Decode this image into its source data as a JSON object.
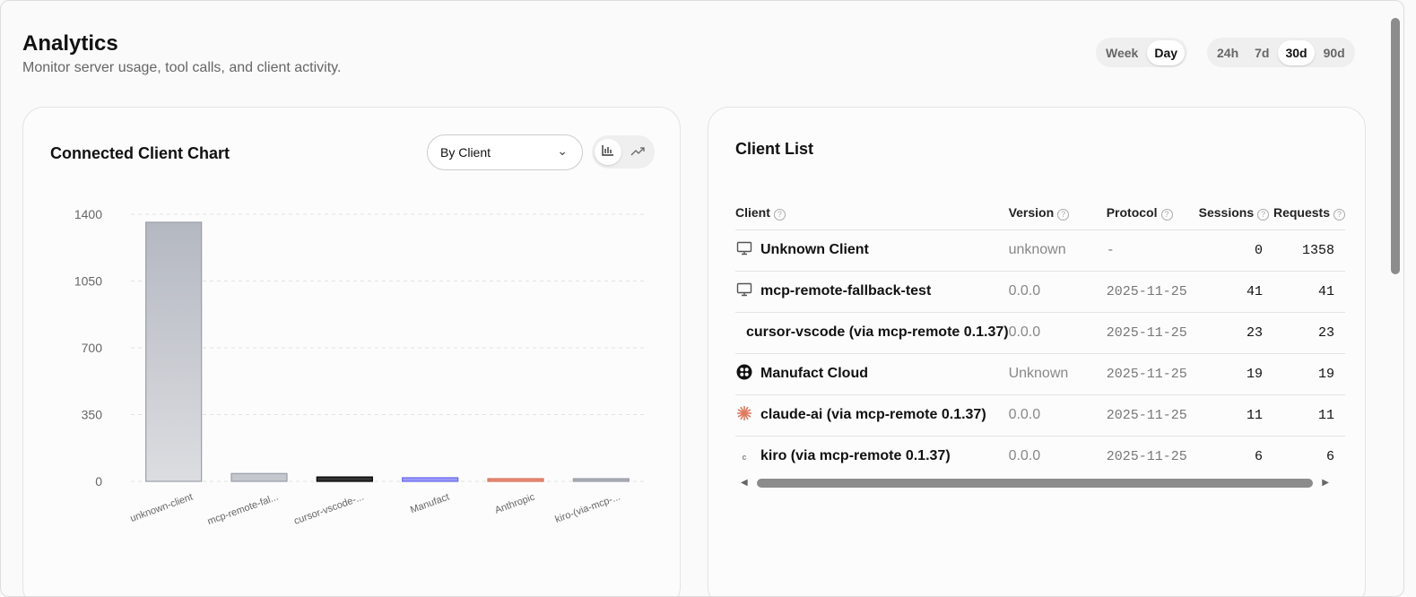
{
  "header": {
    "title": "Analytics",
    "subtitle": "Monitor server usage, tool calls, and client activity."
  },
  "granularity": {
    "options": [
      "Week",
      "Day"
    ],
    "selected": "Day"
  },
  "range": {
    "options": [
      "24h",
      "7d",
      "30d",
      "90d"
    ],
    "selected": "30d"
  },
  "chart_card": {
    "title": "Connected Client Chart",
    "group_by": "By Client",
    "view_modes": [
      "bar-chart-icon",
      "trending-up-icon"
    ],
    "selected_view": "bar-chart-icon"
  },
  "chart_data": {
    "type": "bar",
    "categories": [
      "unknown-client",
      "mcp-remote-fal...",
      "cursor-vscode-...",
      "Manufact",
      "Anthropic",
      "kiro-(via-mcp-..."
    ],
    "values": [
      1358,
      41,
      23,
      19,
      11,
      6
    ],
    "colors": [
      "#b6bac2",
      "#c4c7ce",
      "#333333",
      "#9a9af7",
      "#e88f77",
      "#a9adb5"
    ],
    "yticks": [
      0,
      350,
      700,
      1050,
      1400
    ],
    "ylim": [
      0,
      1400
    ],
    "grid": true
  },
  "client_list": {
    "title": "Client List",
    "columns": [
      "Client",
      "Version",
      "Protocol",
      "Sessions",
      "Requests"
    ],
    "rows": [
      {
        "icon": "monitor-icon",
        "client": "Unknown Client",
        "version": "unknown",
        "protocol": "-",
        "sessions": "0",
        "requests": "1358"
      },
      {
        "icon": "monitor-icon",
        "client": "mcp-remote-fallback-test",
        "version": "0.0.0",
        "protocol": "2025-11-25",
        "sessions": "41",
        "requests": "41"
      },
      {
        "icon": "",
        "client": "cursor-vscode (via mcp-remote 0.1.37)",
        "version": "0.0.0",
        "protocol": "2025-11-25",
        "sessions": "23",
        "requests": "23"
      },
      {
        "icon": "manufact-logo-icon",
        "client": "Manufact Cloud",
        "version": "Unknown",
        "protocol": "2025-11-25",
        "sessions": "19",
        "requests": "19"
      },
      {
        "icon": "anthropic-asterisk-icon",
        "client": "claude-ai (via mcp-remote 0.1.37)",
        "version": "0.0.0",
        "protocol": "2025-11-25",
        "sessions": "11",
        "requests": "11"
      },
      {
        "icon": "kiro-icon",
        "client": "kiro (via mcp-remote 0.1.37)",
        "version": "0.0.0",
        "protocol": "2025-11-25",
        "sessions": "6",
        "requests": "6"
      }
    ]
  }
}
